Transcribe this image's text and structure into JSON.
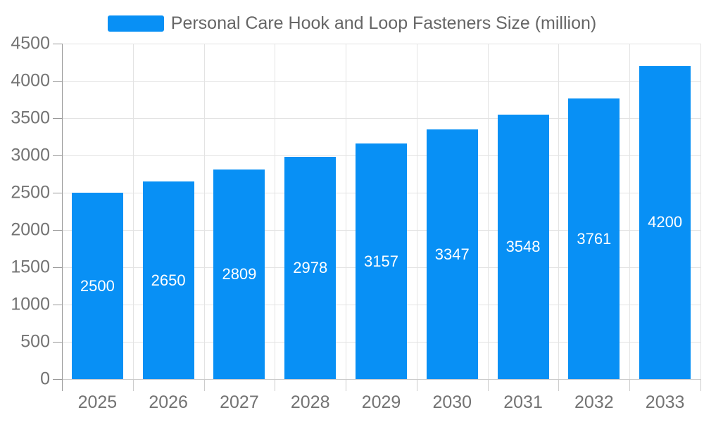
{
  "legend": {
    "label": "Personal Care Hook and Loop Fasteners Size (million)"
  },
  "chart_data": {
    "type": "bar",
    "title": "Personal Care Hook and Loop Fasteners Size (million)",
    "categories": [
      "2025",
      "2026",
      "2027",
      "2028",
      "2029",
      "2030",
      "2031",
      "2032",
      "2033"
    ],
    "values": [
      2500,
      2650,
      2809,
      2978,
      3157,
      3347,
      3548,
      3761,
      4200
    ],
    "series": [
      {
        "name": "Personal Care Hook and Loop Fasteners Size (million)",
        "values": [
          2500,
          2650,
          2809,
          2978,
          3157,
          3347,
          3548,
          3761,
          4200
        ]
      }
    ],
    "xlabel": "",
    "ylabel": "",
    "ylim": [
      0,
      4500
    ],
    "yticks": [
      0,
      500,
      1000,
      1500,
      2000,
      2500,
      3000,
      3500,
      4000,
      4500
    ],
    "grid": true,
    "legend_position": "top",
    "value_label_position": "inside-center"
  },
  "colors": {
    "bar": "#0890f5",
    "gridline": "#e3e3e3",
    "axis": "#999999",
    "minor_tick": "#cccccc",
    "axis_label": "#737373",
    "legend_text": "#666666",
    "value_label": "#ffffff",
    "background": "#ffffff"
  }
}
